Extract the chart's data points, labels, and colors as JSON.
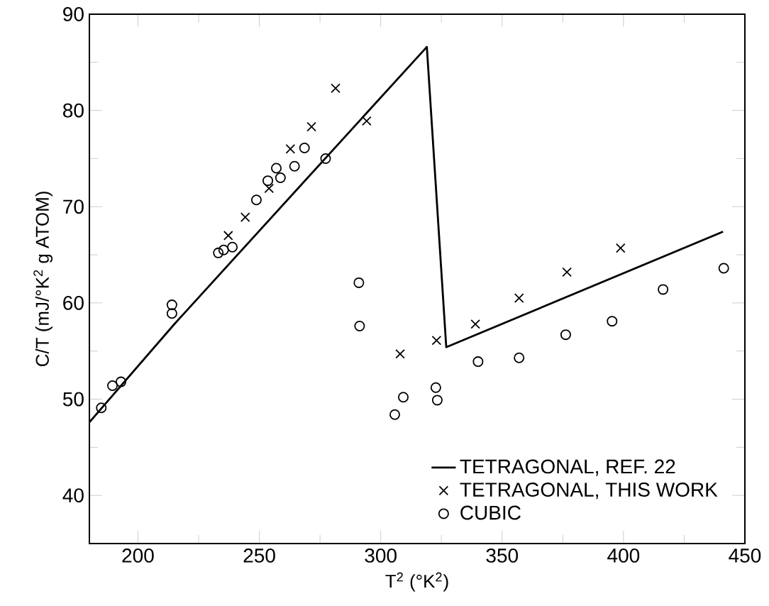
{
  "chart_data": {
    "type": "scatter",
    "xlabel": "T$^{2}$ (°K$^{2}$)",
    "ylabel": "C/T (mJ/°K$^{2}$ g ATOM)",
    "xlim": [
      180,
      450
    ],
    "ylim": [
      35,
      90
    ],
    "xticks": [
      200,
      250,
      300,
      350,
      400,
      450
    ],
    "yticks": [
      40,
      50,
      60,
      70,
      80,
      90
    ],
    "grid": false,
    "legend": "bottom right",
    "series": [
      {
        "name": "TETRAGONAL, REF. 22",
        "type": "line",
        "color": "#000000",
        "marker": "none",
        "line_style": "solid",
        "x": [
          180,
          215,
          319,
          327,
          441
        ],
        "values": [
          47.6,
          57.8,
          86.6,
          55.4,
          67.4
        ]
      },
      {
        "name": "TETRAGONAL, THIS WORK",
        "color": "#000000",
        "marker": "cross",
        "x": [
          237.2,
          244.2,
          254,
          262.8,
          271.5,
          281.4,
          294.2,
          308,
          323,
          339,
          357,
          376.7,
          398.8
        ],
        "values": [
          67.0,
          68.9,
          71.9,
          76.0,
          78.3,
          82.3,
          78.9,
          54.7,
          56.1,
          57.8,
          60.5,
          63.2,
          65.7
        ]
      },
      {
        "name": "CUBIC",
        "color": "#000000",
        "marker": "circle",
        "x": [
          184.9,
          189.5,
          193,
          214,
          214,
          233.1,
          235.3,
          238.9,
          248.8,
          253.5,
          257,
          258.7,
          264.5,
          268.6,
          277.3,
          291,
          291.3,
          305.8,
          309.3,
          322.7,
          323.3,
          340.1,
          357,
          376.2,
          395.3,
          416.3,
          441.3
        ],
        "values": [
          49.1,
          51.4,
          51.8,
          59.8,
          58.9,
          65.2,
          65.5,
          65.8,
          70.7,
          72.7,
          74.0,
          73.0,
          74.2,
          76.1,
          75.0,
          62.1,
          57.6,
          48.4,
          50.2,
          51.2,
          49.9,
          53.9,
          54.3,
          56.7,
          58.1,
          61.4,
          63.6
        ]
      }
    ]
  }
}
